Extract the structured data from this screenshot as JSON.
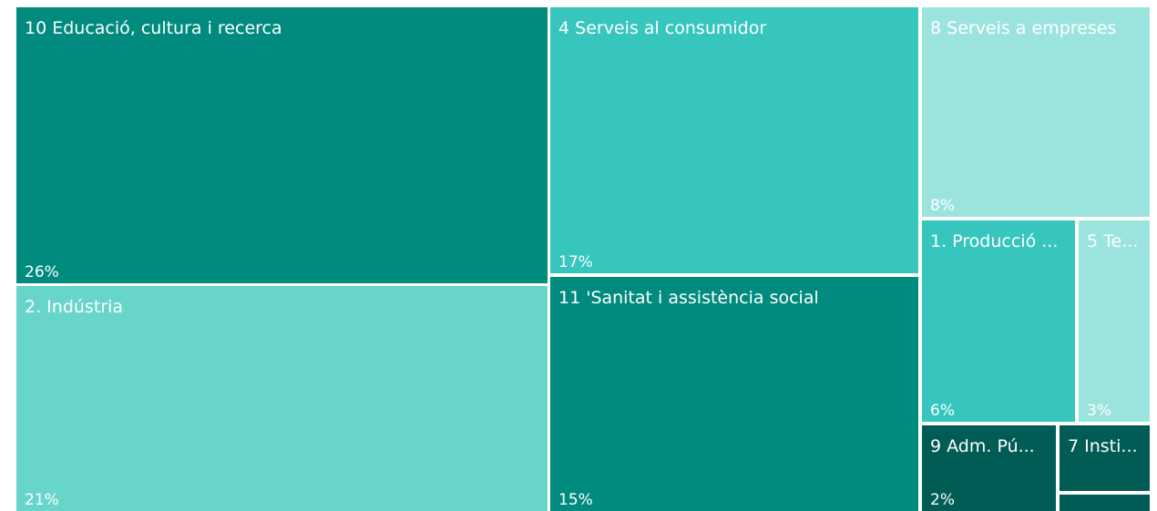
{
  "chart_data": {
    "type": "treemap",
    "items": [
      {
        "label": "10 Educació, cultura i recerca",
        "display_label": "10 Educació, cultura i recerca",
        "value_label": "26%",
        "value": 26,
        "color": "#008B7E",
        "text_color": "#FFFFFF"
      },
      {
        "label": "2. Indústria",
        "display_label": "2. Indústria",
        "value_label": "21%",
        "value": 21,
        "color": "#68D5CB",
        "text_color": "#FFFFFF"
      },
      {
        "label": "4 Serveis al consumidor",
        "display_label": "4 Serveis al consumidor",
        "value_label": "17%",
        "value": 17,
        "color": "#36C6BD",
        "text_color": "#FFFFFF"
      },
      {
        "label": "11 'Sanitat i assistència social",
        "display_label": "11 'Sanitat i assistència social",
        "value_label": "15%",
        "value": 15,
        "color": "#008B7E",
        "text_color": "#FFFFFF"
      },
      {
        "label": "8 Serveis a empreses",
        "display_label": "8 Serveis a empreses",
        "value_label": "8%",
        "value": 8,
        "color": "#9BE4DE",
        "text_color": "#FFFFFF"
      },
      {
        "label": "1. Producció ...",
        "display_label": "1. Producció ...",
        "value_label": "6%",
        "value": 6,
        "color": "#36C6BD",
        "text_color": "#FFFFFF"
      },
      {
        "label": "5 Te...",
        "display_label": "5 Te...",
        "value_label": "3%",
        "value": 3,
        "color": "#9BE4DE",
        "text_color": "#FFFFFF"
      },
      {
        "label": "9 Adm. Pú...",
        "display_label": "9 Adm. Pú...",
        "value_label": "2%",
        "value": 2,
        "color": "#005C54",
        "text_color": "#FFFFFF"
      },
      {
        "label": "7 Insti...",
        "display_label": "7 Insti...",
        "value_label": "",
        "value": null,
        "color": "#005C54",
        "text_color": "#FFFFFF"
      },
      {
        "label": "",
        "display_label": "",
        "value_label": "",
        "value": null,
        "color": "#005C54",
        "text_color": "#FFFFFF"
      }
    ]
  }
}
